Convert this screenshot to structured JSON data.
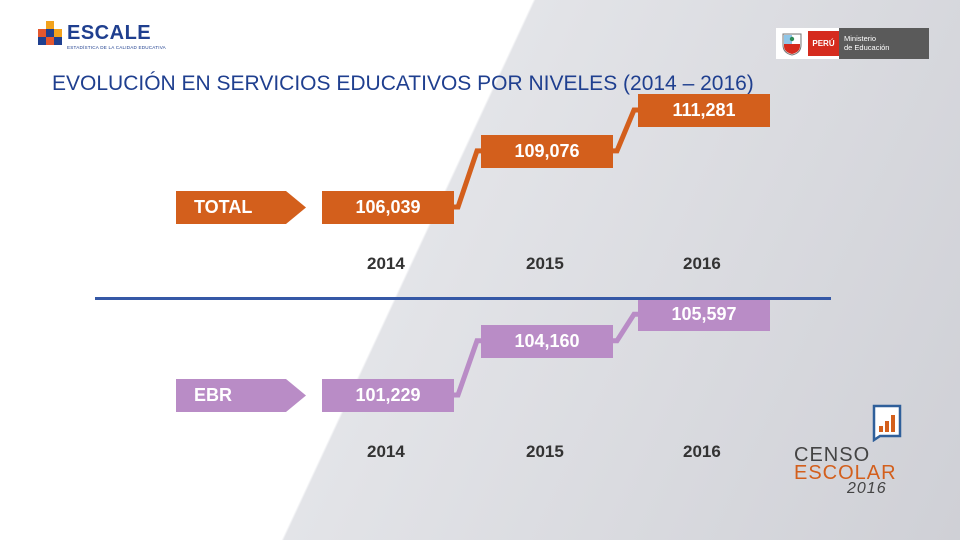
{
  "header": {
    "escale_name": "ESCALE",
    "escale_tagline": "ESTADÍSTICA DE LA CALIDAD EDUCATIVA",
    "peru_label": "PERÚ",
    "ministry_line1": "Ministerio",
    "ministry_line2": "de Educación",
    "title": "EVOLUCIÓN EN SERVICIOS EDUCATIVOS POR NIVELES (2014 – 2016)"
  },
  "chart_data": [
    {
      "type": "bar",
      "title": "TOTAL",
      "categories": [
        "2014",
        "2015",
        "2016"
      ],
      "values": [
        106039,
        109076,
        111281
      ],
      "labels": [
        "106,039",
        "109,076",
        "111,281"
      ]
    },
    {
      "type": "bar",
      "title": "EBR",
      "categories": [
        "2014",
        "2015",
        "2016"
      ],
      "values": [
        101229,
        104160,
        105597
      ],
      "labels": [
        "101,229",
        "104,160",
        "105,597"
      ]
    }
  ],
  "footer_logo": {
    "line1": "CENSO",
    "line2": "ESCOLAR",
    "year": "2016"
  },
  "colors": {
    "total": "#d35f1c",
    "ebr": "#b98cc6",
    "title": "#1f3f8f",
    "divider": "#3558a6"
  }
}
